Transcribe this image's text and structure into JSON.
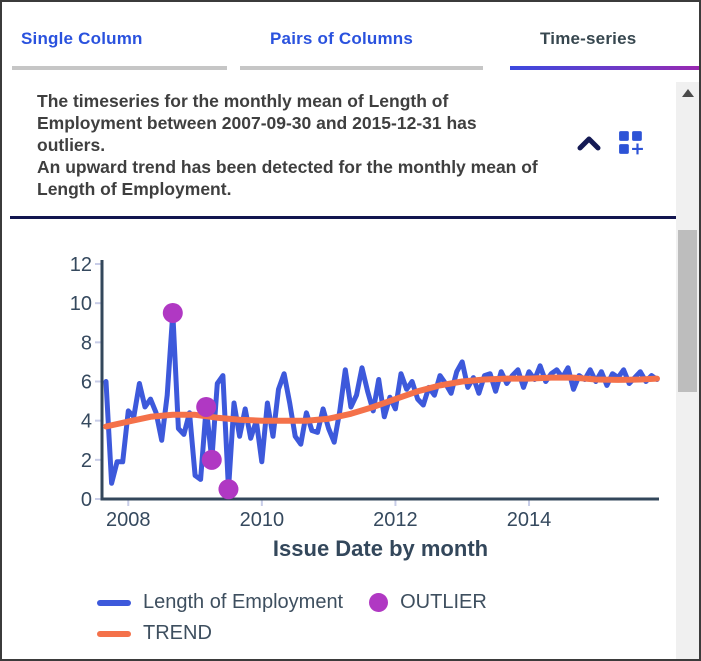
{
  "tabs": [
    {
      "label": "Single Column",
      "active": false
    },
    {
      "label": "Pairs of Columns",
      "active": false
    },
    {
      "label": "Time-series",
      "active": true
    }
  ],
  "insight": {
    "sentence_1": "The timeseries for the monthly mean of Length of Employment between 2007-09-30 and 2015-12-31 has outliers.",
    "sentence_2": "An upward trend has been detected for the monthly mean of Length of Employment.",
    "collapse_icon": "chevron-up-icon",
    "add_chart_icon": "dashboard-customize-icon"
  },
  "colors": {
    "tab_link_blue": "#2a52de",
    "tab_active_text": "#37474f",
    "tab_gradient_start": "#3b49df",
    "tab_gradient_end": "#9c27b0",
    "divider_navy": "#12154f",
    "icon_navy": "#141a54",
    "icon_blue": "#2d53d6",
    "axis_slate": "#33475b",
    "series_blue": "#3d59db",
    "trend_orange": "#f4714a",
    "outlier_purple": "#b038c3"
  },
  "chart_data": {
    "type": "line",
    "title": "",
    "xlabel": "Issue Date by month",
    "ylabel": "",
    "x_start": "2007-09-30",
    "x_end": "2015-12-31",
    "x_step": "1 month",
    "ylim": [
      0,
      12
    ],
    "y_ticks": [
      0,
      2,
      4,
      6,
      8,
      10,
      12
    ],
    "x_ticks": [
      {
        "label": "2008",
        "month_index": 4
      },
      {
        "label": "2010",
        "month_index": 28
      },
      {
        "label": "2012",
        "month_index": 52
      },
      {
        "label": "2014",
        "month_index": 76
      }
    ],
    "grid": false,
    "legend_position": "bottom",
    "series": [
      {
        "name": "Length of Employment",
        "color": "#3d59db",
        "values": [
          6,
          0.8,
          1.9,
          1.9,
          4.5,
          4.2,
          5.9,
          4.7,
          5.1,
          4.4,
          3,
          5.3,
          9.5,
          3.6,
          3.3,
          4.4,
          1.2,
          1,
          4.7,
          2,
          5.9,
          6.3,
          0.5,
          4.9,
          3.2,
          4.6,
          3.1,
          4,
          1.9,
          4.9,
          3.2,
          5.6,
          6.4,
          4.9,
          3.2,
          2.8,
          4.4,
          3.5,
          3.4,
          4.6,
          3.6,
          2.9,
          4.5,
          6.6,
          4.7,
          5.3,
          6.7,
          5.5,
          4.5,
          6.1,
          4.2,
          5.2,
          4.6,
          6.4,
          5.6,
          6,
          5.1,
          4.8,
          5.7,
          5.3,
          6.3,
          5.9,
          5.4,
          6.5,
          7,
          5.7,
          6.2,
          5.4,
          6.3,
          6.4,
          5.5,
          6.5,
          5.9,
          6.3,
          6.6,
          5.7,
          6.5,
          6.1,
          6.8,
          6,
          6.4,
          6.6,
          6.2,
          6.7,
          5.6,
          6.3,
          6.1,
          6.6,
          6,
          6.5,
          5.8,
          6.4,
          6.2,
          6.6,
          5.9,
          6.2,
          6.5,
          6,
          6.3,
          6.1
        ]
      },
      {
        "name": "TREND",
        "color": "#f4714a",
        "knots": [
          [
            0,
            3.7
          ],
          [
            4,
            3.95
          ],
          [
            8,
            4.2
          ],
          [
            12,
            4.3
          ],
          [
            16,
            4.3
          ],
          [
            20,
            4.15
          ],
          [
            24,
            4.05
          ],
          [
            28,
            4
          ],
          [
            32,
            4
          ],
          [
            36,
            4
          ],
          [
            40,
            4.1
          ],
          [
            44,
            4.35
          ],
          [
            48,
            4.7
          ],
          [
            52,
            5.1
          ],
          [
            56,
            5.5
          ],
          [
            60,
            5.8
          ],
          [
            64,
            6
          ],
          [
            68,
            6.1
          ],
          [
            72,
            6.15
          ],
          [
            76,
            6.15
          ],
          [
            80,
            6.2
          ],
          [
            84,
            6.2
          ],
          [
            88,
            6.1
          ],
          [
            92,
            6.08
          ],
          [
            96,
            6.1
          ],
          [
            99,
            6.15
          ]
        ]
      }
    ],
    "outliers": {
      "name": "OUTLIER",
      "color": "#b038c3",
      "points": [
        {
          "date": "2008-09-30",
          "month_index": 12,
          "value": 9.5
        },
        {
          "date": "2009-03-31",
          "month_index": 18,
          "value": 4.7
        },
        {
          "date": "2009-04-30",
          "month_index": 19,
          "value": 2.0
        },
        {
          "date": "2009-07-31",
          "month_index": 22,
          "value": 0.5
        }
      ]
    }
  }
}
